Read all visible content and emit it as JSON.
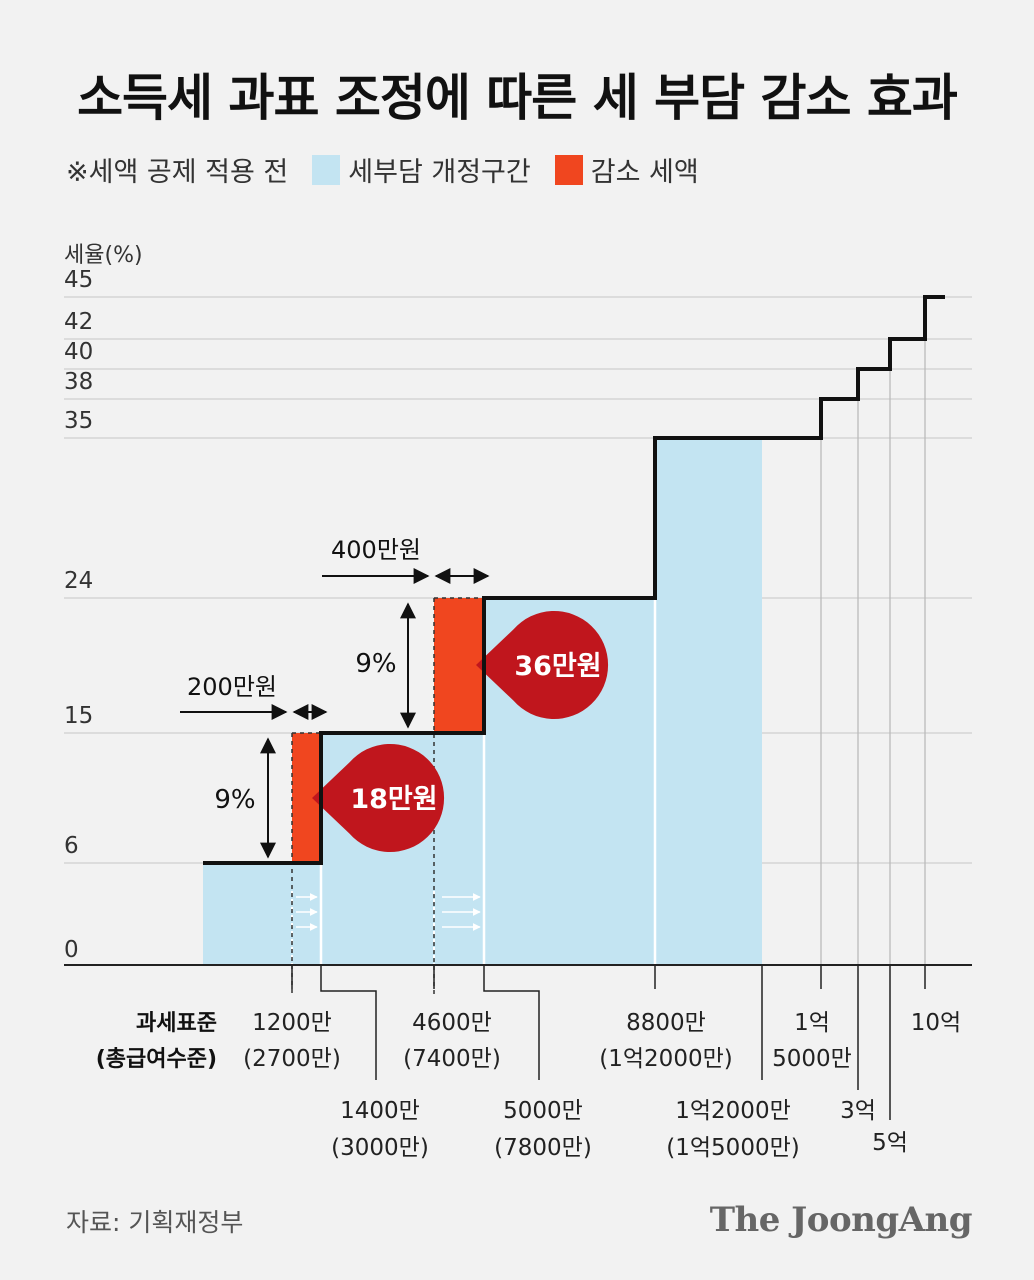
{
  "title": "소득세 과표 조정에 따른 세 부담 감소 효과",
  "legend": {
    "note": "※세액 공제 적용 전",
    "items": [
      {
        "label": "세부담 개정구간",
        "color": "#c3e4f2"
      },
      {
        "label": "감소 세액",
        "color": "#f0461f"
      }
    ]
  },
  "colors": {
    "revised_band": "#c3e4f2",
    "reduction": "#f0461f",
    "callout": "#c0161d",
    "step_line": "#111111",
    "grid": "#cfcfcf"
  },
  "source": "자료: 기획재정부",
  "brand": "The JoongAng",
  "chart_data": {
    "type": "step",
    "ylabel": "세율(%)",
    "y_ticks": [
      0,
      6,
      15,
      24,
      35,
      38,
      40,
      42,
      45
    ],
    "xlabel": [
      "과세표준",
      "(총급여수준)"
    ],
    "brackets": [
      {
        "label": "1200만",
        "sub": "(2700만)",
        "rate": 6
      },
      {
        "label": "1400만",
        "sub": "(3000만)",
        "rate": 15
      },
      {
        "label": "4600만",
        "sub": "(7400만)",
        "rate": 15
      },
      {
        "label": "5000만",
        "sub": "(7800만)",
        "rate": 24
      },
      {
        "label": "8800만",
        "sub": "(1억2000만)",
        "rate": 24
      },
      {
        "label": "1억2000만",
        "sub": "(1억5000만)",
        "rate": 35
      },
      {
        "label": "1억",
        "sub": "5000만",
        "rate": 38
      },
      {
        "label": "3억",
        "sub": "",
        "rate": 40
      },
      {
        "label": "5억",
        "sub": "",
        "rate": 42
      },
      {
        "label": "10억",
        "sub": "",
        "rate": 45
      }
    ],
    "annotations": [
      {
        "shift": "200만원",
        "rate_diff": "9%",
        "saving": "18만원"
      },
      {
        "shift": "400만원",
        "rate_diff": "9%",
        "saving": "36만원"
      }
    ]
  }
}
